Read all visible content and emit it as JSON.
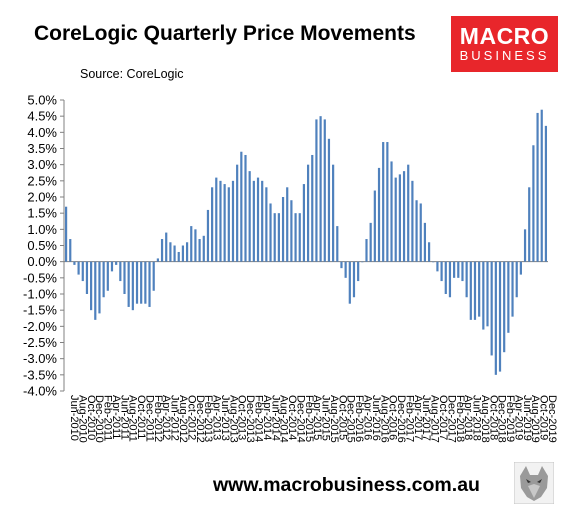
{
  "header": {
    "title": "CoreLogic Quarterly Price Movements",
    "source": "Source: CoreLogic"
  },
  "logo": {
    "line1": "MACRO",
    "line2": "BUSINESS",
    "color": "#e8262b"
  },
  "footer": {
    "website": "www.macrobusiness.com.au"
  },
  "chart_data": {
    "type": "bar",
    "title": "CoreLogic Quarterly Price Movements",
    "xlabel": "",
    "ylabel": "",
    "ylim": [
      -4.0,
      5.0
    ],
    "yticks": [
      "5.0%",
      "4.5%",
      "4.0%",
      "3.5%",
      "3.0%",
      "2.5%",
      "2.0%",
      "1.5%",
      "1.0%",
      "0.5%",
      "0.0%",
      "-0.5%",
      "-1.0%",
      "-1.5%",
      "-2.0%",
      "-2.5%",
      "-3.0%",
      "-3.5%",
      "-4.0%"
    ],
    "xticks": [
      "Jun-2010",
      "Aug-2010",
      "Oct-2010",
      "Dec-2010",
      "Feb-2011",
      "Apr-2011",
      "Jun-2011",
      "Aug-2011",
      "Oct-2011",
      "Dec-2011",
      "Feb-2012",
      "Apr-2012",
      "Jun-2012",
      "Aug-2012",
      "Oct-2012",
      "Dec-2012",
      "Feb-2013",
      "Apr-2013",
      "Jun-2013",
      "Aug-2013",
      "Oct-2013",
      "Dec-2013",
      "Feb-2014",
      "Apr-2014",
      "Jun-2014",
      "Aug-2014",
      "Oct-2014",
      "Dec-2014",
      "Feb-2015",
      "Apr-2015",
      "Jun-2015",
      "Aug-2015",
      "Oct-2015",
      "Dec-2015",
      "Feb-2016",
      "Apr-2016",
      "Jun-2016",
      "Aug-2016",
      "Oct-2016",
      "Dec-2016",
      "Feb-2017",
      "Apr-2017",
      "Jun-2017",
      "Aug-2017",
      "Oct-2017",
      "Dec-2017",
      "Feb-2018",
      "Apr-2018",
      "Jun-2018",
      "Aug-2018",
      "Oct-2018",
      "Dec-2018",
      "Feb-2019",
      "Apr-2019",
      "Jun-2019",
      "Aug-2019",
      "Oct-2019",
      "Dec-2019"
    ],
    "series": [
      {
        "color": "#4f81bd",
        "values": [
          1.7,
          0.7,
          -0.1,
          -0.4,
          -0.6,
          -1.0,
          -1.5,
          -1.8,
          -1.6,
          -1.1,
          -0.9,
          -0.3,
          -0.1,
          -0.6,
          -1.0,
          -1.4,
          -1.5,
          -1.3,
          -1.3,
          -1.3,
          -1.4,
          -0.9,
          0.1,
          0.7,
          0.9,
          0.6,
          0.5,
          0.3,
          0.5,
          0.6,
          1.1,
          1.0,
          0.7,
          0.8,
          1.6,
          2.3,
          2.6,
          2.5,
          2.4,
          2.3,
          2.5,
          3.0,
          3.4,
          3.3,
          2.8,
          2.5,
          2.6,
          2.5,
          2.3,
          1.8,
          1.5,
          1.5,
          2.0,
          2.3,
          1.9,
          1.5,
          1.5,
          2.4,
          3.0,
          3.3,
          4.4,
          4.5,
          4.4,
          3.8,
          3.0,
          1.1,
          -0.2,
          -0.5,
          -1.3,
          -1.1,
          -0.6,
          0.0,
          0.7,
          1.2,
          2.2,
          2.9,
          3.7,
          3.7,
          3.1,
          2.6,
          2.7,
          2.8,
          3.0,
          2.5,
          1.9,
          1.8,
          1.2,
          0.6,
          0.0,
          -0.3,
          -0.6,
          -1.0,
          -1.1,
          -0.5,
          -0.5,
          -0.6,
          -1.1,
          -1.8,
          -1.8,
          -1.7,
          -2.1,
          -2.0,
          -2.9,
          -3.5,
          -3.4,
          -2.8,
          -2.2,
          -1.7,
          -1.1,
          -0.4,
          1.0,
          2.3,
          3.6,
          4.6,
          4.7,
          4.2
        ]
      }
    ]
  }
}
